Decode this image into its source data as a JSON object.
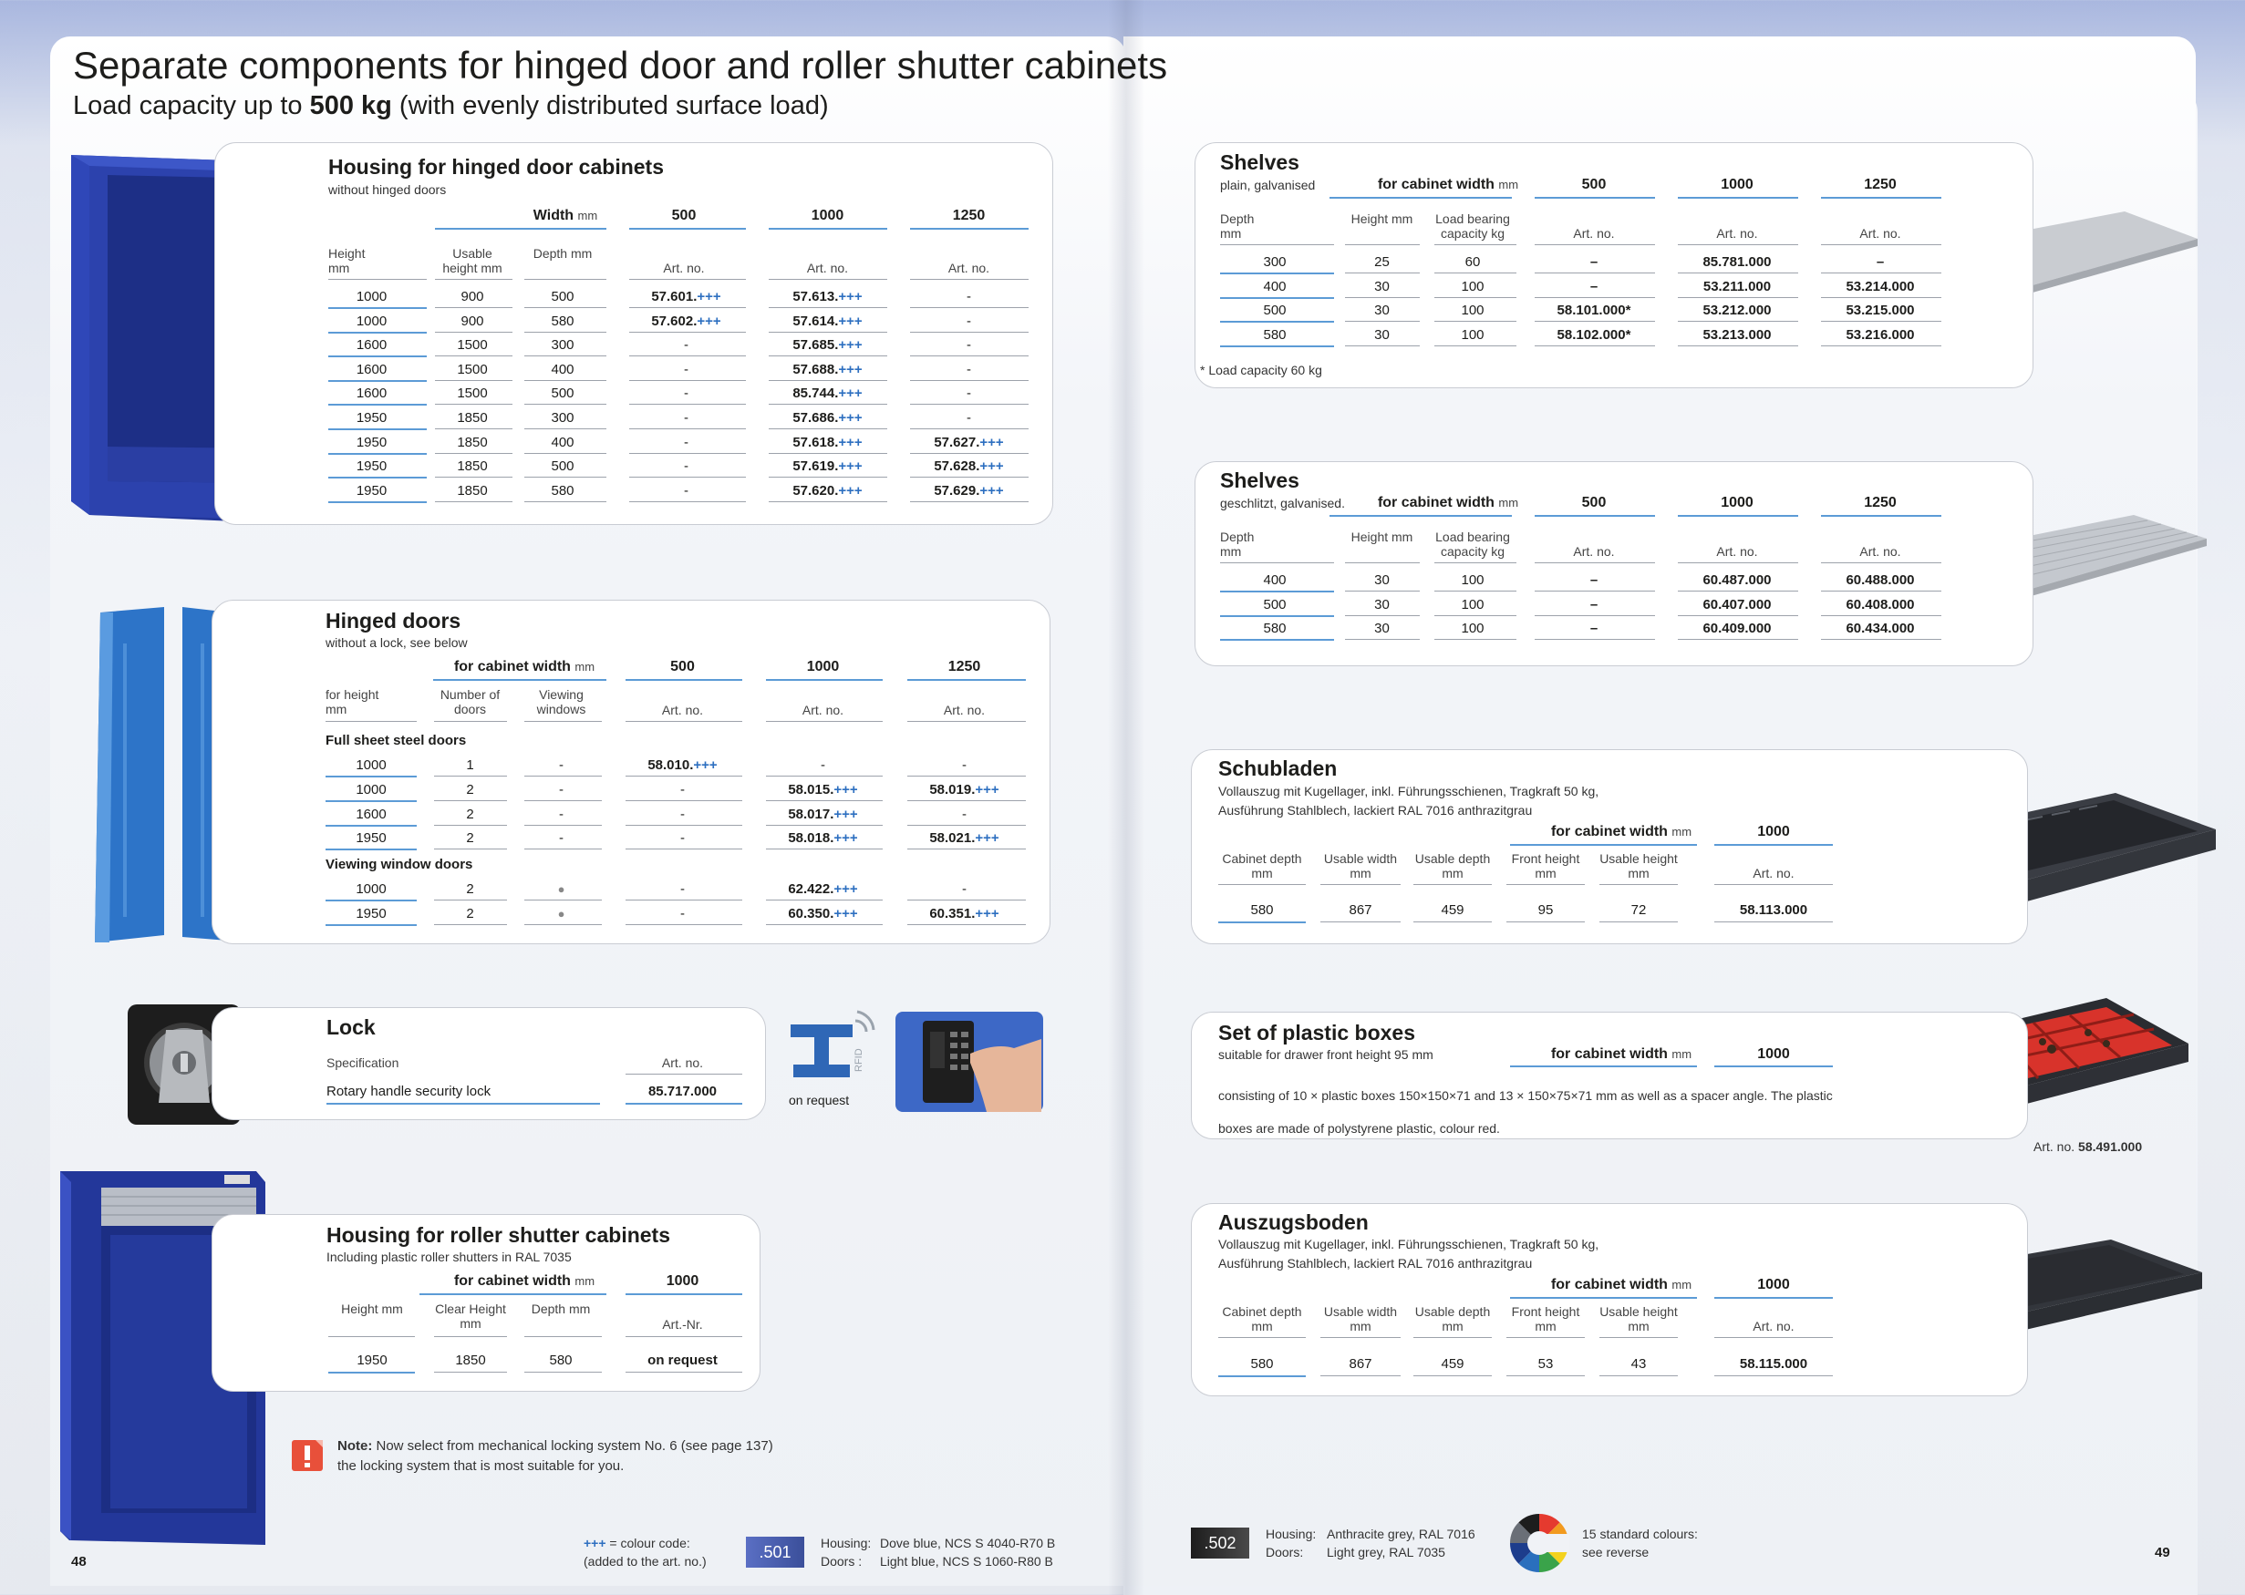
{
  "header": {
    "title": "Separate components for hinged door and roller shutter cabinets",
    "subtitle_pre": "Load capacity up to ",
    "subtitle_bold": "500 kg",
    "subtitle_post": " (with evenly distributed surface load)"
  },
  "housing_hinged": {
    "title": "Housing for hinged door cabinets",
    "subtitle": "without hinged doors",
    "width_label": "Width",
    "unit": "mm",
    "col_heads": [
      "500",
      "1000",
      "1250"
    ],
    "h_height": "Height mm",
    "h_usable": "Usable height mm",
    "h_depth": "Depth mm",
    "h_art": "Art. no.",
    "rows": [
      {
        "height": "1000",
        "usable": "900",
        "depth": "500",
        "a": "57.601.",
        "b": "57.613.",
        "c": "-"
      },
      {
        "height": "1000",
        "usable": "900",
        "depth": "580",
        "a": "57.602.",
        "b": "57.614.",
        "c": "-"
      },
      {
        "height": "1600",
        "usable": "1500",
        "depth": "300",
        "a": "-",
        "b": "57.685.",
        "c": "-"
      },
      {
        "height": "1600",
        "usable": "1500",
        "depth": "400",
        "a": "-",
        "b": "57.688.",
        "c": "-"
      },
      {
        "height": "1600",
        "usable": "1500",
        "depth": "500",
        "a": "-",
        "b": "85.744.",
        "c": "-"
      },
      {
        "height": "1950",
        "usable": "1850",
        "depth": "300",
        "a": "-",
        "b": "57.686.",
        "c": "-"
      },
      {
        "height": "1950",
        "usable": "1850",
        "depth": "400",
        "a": "-",
        "b": "57.618.",
        "c": "57.627."
      },
      {
        "height": "1950",
        "usable": "1850",
        "depth": "500",
        "a": "-",
        "b": "57.619.",
        "c": "57.628."
      },
      {
        "height": "1950",
        "usable": "1850",
        "depth": "580",
        "a": "-",
        "b": "57.620.",
        "c": "57.629."
      }
    ]
  },
  "color_code": "+++",
  "hinged_doors": {
    "title": "Hinged doors",
    "subtitle": "without a lock, see below",
    "width_label": "for cabinet width",
    "unit": "mm",
    "col_heads": [
      "500",
      "1000",
      "1250"
    ],
    "h_height": "for height mm",
    "h_doors": "Number of doors",
    "h_windows": "Viewing windows",
    "h_art": "Art. no.",
    "group1": "Full sheet steel doors",
    "group2": "Viewing window doors",
    "rows1": [
      {
        "height": "1000",
        "doors": "1",
        "win": "-",
        "a": "58.010.",
        "b": "-",
        "c": "-"
      },
      {
        "height": "1000",
        "doors": "2",
        "win": "-",
        "a": "-",
        "b": "58.015.",
        "c": "58.019."
      },
      {
        "height": "1600",
        "doors": "2",
        "win": "-",
        "a": "-",
        "b": "58.017.",
        "c": "-"
      },
      {
        "height": "1950",
        "doors": "2",
        "win": "-",
        "a": "-",
        "b": "58.018.",
        "c": "58.021."
      }
    ],
    "rows2": [
      {
        "height": "1000",
        "doors": "2",
        "win": "●",
        "a": "-",
        "b": "62.422.",
        "c": "-"
      },
      {
        "height": "1950",
        "doors": "2",
        "win": "●",
        "a": "-",
        "b": "60.350.",
        "c": "60.351."
      }
    ]
  },
  "lock": {
    "title": "Lock",
    "h_spec": "Specification",
    "h_art": "Art. no.",
    "spec": "Rotary handle security lock",
    "art": "85.717.000",
    "on_request": "on request",
    "rfid": "RFID"
  },
  "roller": {
    "title": "Housing for roller shutter cabinets",
    "subtitle": "Including plastic roller shutters in RAL 7035",
    "width_label": "for cabinet width",
    "unit": "mm",
    "col_head": "1000",
    "h_height": "Height mm",
    "h_clear": "Clear Height mm",
    "h_depth": "Depth mm",
    "h_art": "Art.-Nr.",
    "row": {
      "height": "1950",
      "clear": "1850",
      "depth": "580",
      "art": "on request"
    }
  },
  "note": {
    "bold": "Note:",
    "line1": " Now select from mechanical locking system No. 6 (see page 137)",
    "line2": "the locking system that is most suitable for you."
  },
  "left_footer": {
    "code_line1": " = colour code:",
    "code_line2": "(added to the art. no.)",
    "badge": ".501",
    "housing_lbl": "Housing:",
    "housing_val": "Dove blue, NCS S 4040-R70 B",
    "doors_lbl": "Doors :",
    "doors_val": "Light blue, NCS S 1060-R80 B",
    "page": "48",
    "badge_color": "#3b4f9a"
  },
  "shelves1": {
    "title": "Shelves",
    "subtitle": "plain, galvanised",
    "width_label": "for cabinet width",
    "unit": "mm",
    "col_heads": [
      "500",
      "1000",
      "1250"
    ],
    "h_depth": "Depth mm",
    "h_height": "Height mm",
    "h_load": "Load bearing capacity kg",
    "h_art": "Art. no.",
    "rows": [
      {
        "depth": "300",
        "height": "25",
        "load": "60",
        "a": "–",
        "b": "85.781.000",
        "c": "–"
      },
      {
        "depth": "400",
        "height": "30",
        "load": "100",
        "a": "–",
        "b": "53.211.000",
        "c": "53.214.000"
      },
      {
        "depth": "500",
        "height": "30",
        "load": "100",
        "a": "58.101.000*",
        "b": "53.212.000",
        "c": "53.215.000"
      },
      {
        "depth": "580",
        "height": "30",
        "load": "100",
        "a": "58.102.000*",
        "b": "53.213.000",
        "c": "53.216.000"
      }
    ],
    "footnote": "* Load capacity 60 kg"
  },
  "shelves2": {
    "title": "Shelves",
    "subtitle": "geschlitzt, galvanised.",
    "width_label": "for cabinet width",
    "unit": "mm",
    "col_heads": [
      "500",
      "1000",
      "1250"
    ],
    "h_depth": "Depth mm",
    "h_height": "Height mm",
    "h_load": "Load bearing capacity kg",
    "h_art": "Art. no.",
    "rows": [
      {
        "depth": "400",
        "height": "30",
        "load": "100",
        "a": "–",
        "b": "60.487.000",
        "c": "60.488.000"
      },
      {
        "depth": "500",
        "height": "30",
        "load": "100",
        "a": "–",
        "b": "60.407.000",
        "c": "60.408.000"
      },
      {
        "depth": "580",
        "height": "30",
        "load": "100",
        "a": "–",
        "b": "60.409.000",
        "c": "60.434.000"
      }
    ]
  },
  "schubladen": {
    "title": "Schubladen",
    "line1": "Vollauszug mit Kugellager, inkl. Führungsschienen, Tragkraft 50 kg,",
    "line2": "Ausführung Stahlblech, lackiert RAL 7016 anthrazitgrau",
    "width_label": "for cabinet width",
    "unit": "mm",
    "col_head": "1000",
    "h": [
      "Cabinet depth mm",
      "Usable width mm",
      "Usable depth mm",
      "Front height mm",
      "Usable height mm",
      "Art. no."
    ],
    "row": [
      "580",
      "867",
      "459",
      "95",
      "72",
      "58.113.000"
    ]
  },
  "plastic": {
    "title": "Set of plastic boxes",
    "subtitle": "suitable for drawer front height 95 mm",
    "width_label": "for cabinet width",
    "unit": "mm",
    "col_head": "1000",
    "line1": "consisting of 10 × plastic boxes 150×150×71 and 13 × 150×75×71 mm as well as a spacer angle. The plastic",
    "line2": "boxes are made of polystyrene plastic, colour red.",
    "art_lbl": "Art. no.",
    "art": "58.491.000"
  },
  "auszug": {
    "title": "Auszugsboden",
    "line1": "Vollauszug mit Kugellager, inkl. Führungsschienen, Tragkraft 50 kg,",
    "line2": "Ausführung Stahlblech, lackiert RAL 7016 anthrazitgrau",
    "width_label": "for cabinet width",
    "unit": "mm",
    "col_head": "1000",
    "h": [
      "Cabinet depth mm",
      "Usable width mm",
      "Usable depth mm",
      "Front height mm",
      "Usable height mm",
      "Art. no."
    ],
    "row": [
      "580",
      "867",
      "459",
      "53",
      "43",
      "58.115.000"
    ]
  },
  "right_footer": {
    "badge": ".502",
    "housing_lbl": "Housing:",
    "housing_val": "Anthracite grey, RAL 7016",
    "doors_lbl": "Doors:",
    "doors_val": "Light grey, RAL 7035",
    "colours_line1": "15 standard colours:",
    "colours_line2": "see reverse",
    "page": "49",
    "badge_color": "#2b2b2b"
  }
}
